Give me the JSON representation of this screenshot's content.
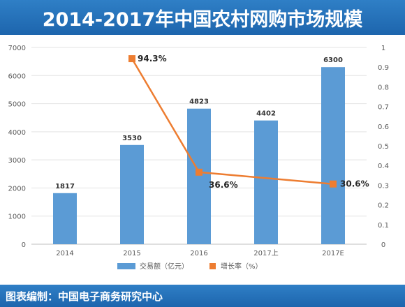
{
  "title": "2014-2017年中国农村网购市场规模",
  "footer": "图表编制：中国电子商务研究中心",
  "colors": {
    "header": "#1f6db5",
    "bar": "#5b9bd5",
    "line": "#ed7d31",
    "grid": "#e3e3e3",
    "axis_text": "#595959"
  },
  "chart_data": {
    "type": "bar",
    "categories": [
      "2014",
      "2015",
      "2016",
      "2017上",
      "2017E"
    ],
    "series": [
      {
        "name": "交易额（亿元）",
        "type": "bar",
        "axis": "left",
        "values": [
          1817,
          3530,
          4823,
          4402,
          6300
        ],
        "labels": [
          "1817",
          "3530",
          "4823",
          "4402",
          "6300"
        ]
      },
      {
        "name": "增长率（%）",
        "type": "line",
        "axis": "right",
        "values": [
          null,
          0.943,
          0.366,
          null,
          0.306
        ],
        "labels": [
          null,
          "94.3%",
          "36.6%",
          null,
          "30.6%"
        ]
      }
    ],
    "left_axis": {
      "ylim": [
        0,
        7000
      ],
      "ticks": [
        "0",
        "1000",
        "2000",
        "3000",
        "4000",
        "5000",
        "6000",
        "7000"
      ]
    },
    "right_axis": {
      "ylim": [
        0,
        1
      ],
      "ticks": [
        "0",
        "0.1",
        "0.2",
        "0.3",
        "0.4",
        "0.5",
        "0.6",
        "0.7",
        "0.8",
        "0.9",
        "1"
      ]
    },
    "grid": true,
    "legend_position": "bottom"
  }
}
